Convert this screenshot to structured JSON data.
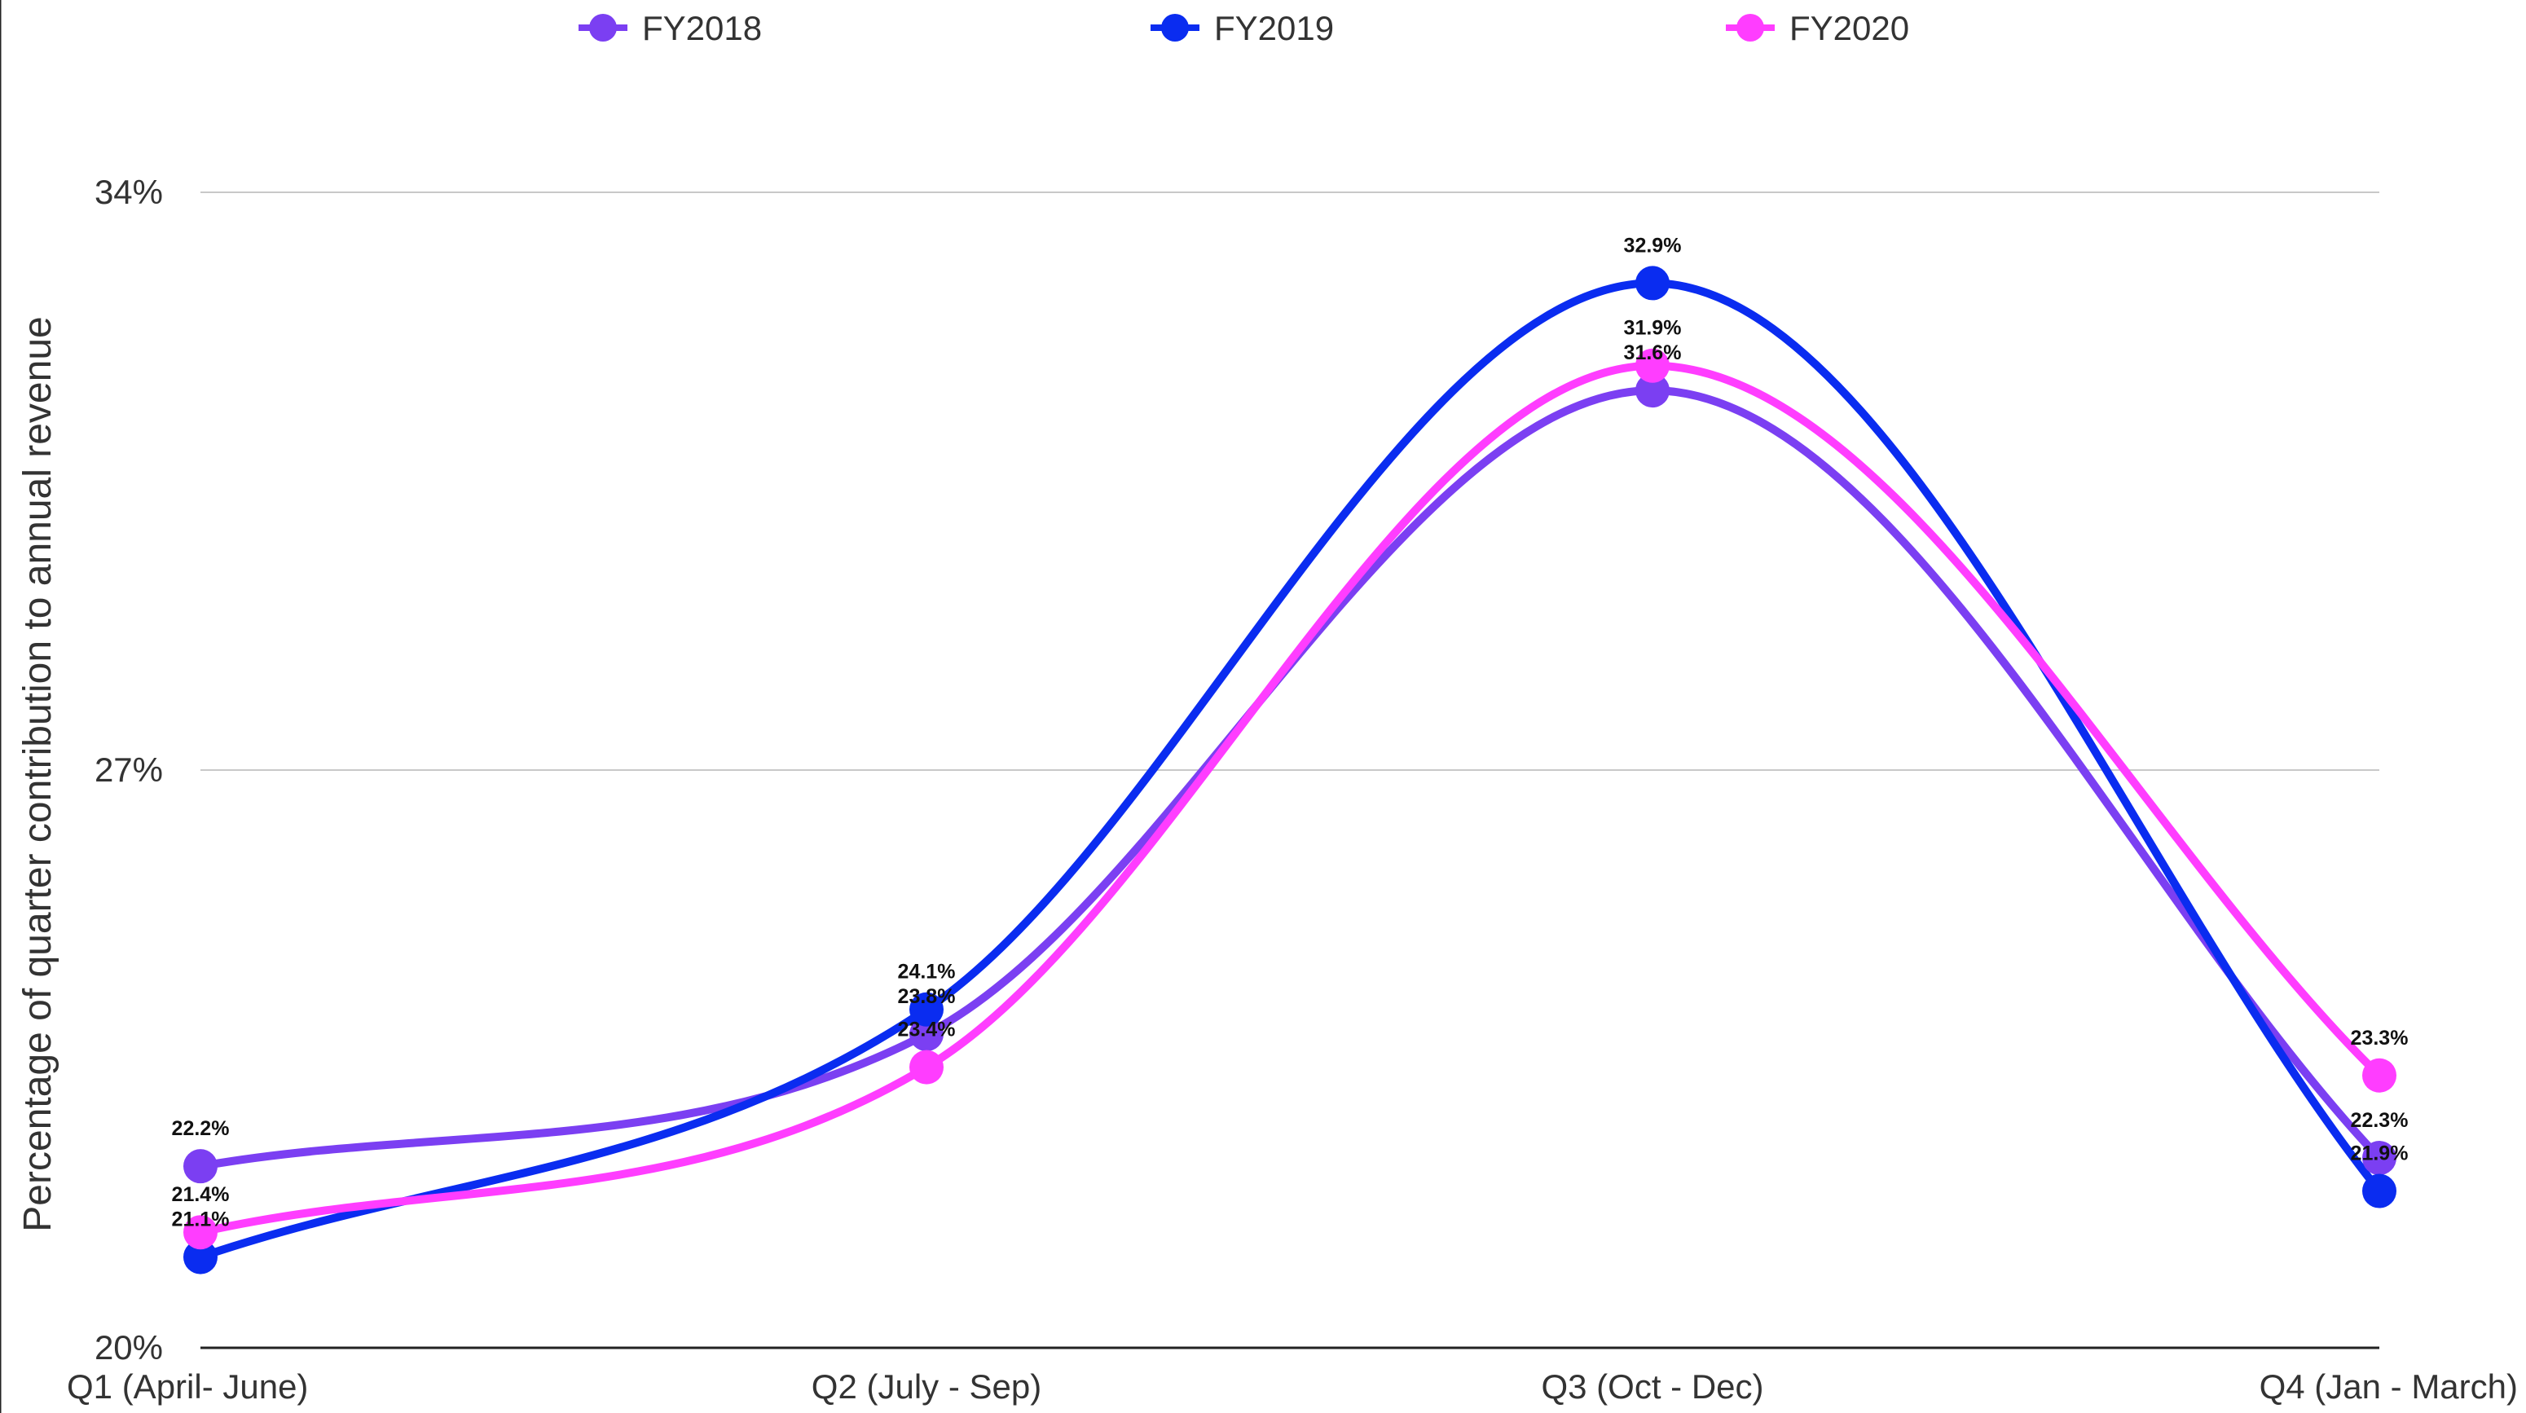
{
  "chart_data": {
    "type": "line",
    "title": "",
    "xlabel": "",
    "ylabel": "Percentage of quarter contribution to annual revenue",
    "categories": [
      "Q1 (April- June)",
      "Q2 (July - Sep)",
      "Q3 (Oct - Dec)",
      "Q4 (Jan - March)"
    ],
    "ylim": [
      20,
      34
    ],
    "yticks": [
      {
        "value": 20,
        "label": "20%"
      },
      {
        "value": 27,
        "label": "27%"
      },
      {
        "value": 34,
        "label": "34%"
      }
    ],
    "grid": true,
    "legend_position": "top",
    "series": [
      {
        "name": "FY2018",
        "color": "#7b3ff2",
        "values": [
          22.2,
          23.8,
          31.6,
          22.3
        ],
        "labels": [
          "22.2%",
          "23.8%",
          "31.6%",
          "22.3%"
        ]
      },
      {
        "name": "FY2019",
        "color": "#0a2cf0",
        "values": [
          21.1,
          24.1,
          32.9,
          21.9
        ],
        "labels": [
          "21.1%",
          "24.1%",
          "32.9%",
          "21.9%"
        ]
      },
      {
        "name": "FY2020",
        "color": "#ff3dff",
        "values": [
          21.4,
          23.4,
          31.9,
          23.3
        ],
        "labels": [
          "21.4%",
          "23.4%",
          "31.9%",
          "23.3%"
        ]
      }
    ]
  }
}
